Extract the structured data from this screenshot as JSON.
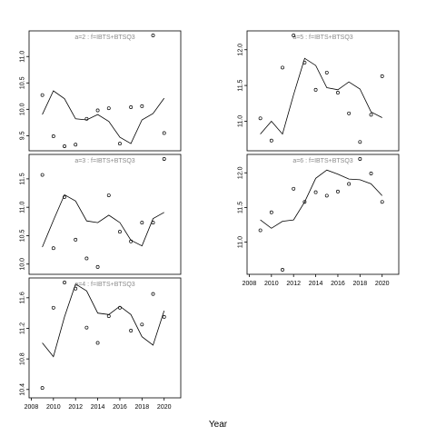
{
  "chart_data": {
    "type": "scatter",
    "xlabel": "Year",
    "panels": [
      {
        "label": "a=2 : f=IBTS+BTSQ3",
        "xlim": [
          2007.8,
          2021.5
        ],
        "ylim": [
          9.3,
          11.4
        ],
        "yticks": [
          9.5,
          10.0,
          10.5,
          11.0
        ],
        "xticks": [],
        "points": {
          "x": [
            2009,
            2010,
            2011,
            2012,
            2013,
            2014,
            2015,
            2016,
            2017,
            2018,
            2019,
            2020
          ],
          "y": [
            10.27,
            9.49,
            9.3,
            9.33,
            9.82,
            9.98,
            10.02,
            9.35,
            10.04,
            10.06,
            11.4,
            9.55
          ]
        },
        "line": {
          "x": [
            2009,
            2010,
            2011,
            2012,
            2013,
            2014,
            2015,
            2016,
            2017,
            2018,
            2019,
            2020
          ],
          "y": [
            9.9,
            10.35,
            10.2,
            9.82,
            9.8,
            9.9,
            9.77,
            9.47,
            9.35,
            9.8,
            9.92,
            10.21
          ]
        }
      },
      {
        "label": "a=3 : f=IBTS+BTSQ3",
        "xlim": [
          2007.8,
          2021.5
        ],
        "ylim": [
          9.9,
          11.85
        ],
        "yticks": [
          10.0,
          10.5,
          11.0,
          11.5
        ],
        "xticks": [],
        "points": {
          "x": [
            2009,
            2010,
            2011,
            2012,
            2013,
            2014,
            2015,
            2016,
            2017,
            2018,
            2019,
            2020
          ],
          "y": [
            11.57,
            10.28,
            11.18,
            10.43,
            10.1,
            9.95,
            11.21,
            10.57,
            10.4,
            10.73,
            10.73,
            11.85
          ]
        },
        "line": {
          "x": [
            2009,
            2010,
            2011,
            2012,
            2013,
            2014,
            2015,
            2016,
            2017,
            2018,
            2019,
            2020
          ],
          "y": [
            10.3,
            10.77,
            11.22,
            11.11,
            10.76,
            10.73,
            10.86,
            10.73,
            10.42,
            10.32,
            10.8,
            10.91
          ]
        }
      },
      {
        "label": "a=4 : f=IBTS+BTSQ3",
        "xlim": [
          2007.8,
          2021.5
        ],
        "ylim": [
          10.35,
          11.8
        ],
        "yticks": [
          10.4,
          10.8,
          11.2,
          11.6
        ],
        "xticks": [
          2008,
          2010,
          2012,
          2014,
          2016,
          2018,
          2020
        ],
        "points": {
          "x": [
            2009,
            2010,
            2011,
            2012,
            2013,
            2014,
            2015,
            2016,
            2017,
            2018,
            2019,
            2020
          ],
          "y": [
            10.42,
            11.47,
            11.8,
            11.72,
            11.21,
            11.01,
            11.36,
            11.47,
            11.17,
            11.25,
            11.65,
            11.35
          ]
        },
        "line": {
          "x": [
            2009,
            2010,
            2011,
            2012,
            2013,
            2014,
            2015,
            2016,
            2017,
            2018,
            2019,
            2020
          ],
          "y": [
            11.01,
            10.83,
            11.35,
            11.78,
            11.69,
            11.4,
            11.38,
            11.49,
            11.38,
            11.09,
            10.98,
            11.43
          ]
        }
      },
      {
        "label": "a=5 : f=IBTS+BTSQ3",
        "xlim": [
          2007.8,
          2021.5
        ],
        "ylim": [
          10.65,
          12.2
        ],
        "yticks": [
          11.0,
          11.5,
          12.0
        ],
        "xticks": [],
        "points": {
          "x": [
            2009,
            2010,
            2011,
            2012,
            2013,
            2014,
            2015,
            2016,
            2017,
            2018,
            2019,
            2020
          ],
          "y": [
            11.04,
            10.73,
            11.75,
            12.2,
            11.82,
            11.44,
            11.68,
            11.4,
            11.11,
            10.71,
            11.09,
            11.63
          ]
        },
        "line": {
          "x": [
            2009,
            2010,
            2011,
            2012,
            2013,
            2014,
            2015,
            2016,
            2017,
            2018,
            2019,
            2020
          ],
          "y": [
            10.82,
            11.0,
            10.82,
            11.37,
            11.88,
            11.78,
            11.47,
            11.44,
            11.55,
            11.45,
            11.13,
            11.05
          ]
        }
      },
      {
        "label": "a=6 : f=IBTS+BTSQ3",
        "xlim": [
          2007.8,
          2021.5
        ],
        "ylim": [
          10.6,
          12.2
        ],
        "yticks": [
          11.0,
          11.5,
          12.0
        ],
        "xticks": [
          2008,
          2010,
          2012,
          2014,
          2016,
          2018,
          2020
        ],
        "points": {
          "x": [
            2009,
            2010,
            2011,
            2012,
            2013,
            2014,
            2015,
            2016,
            2017,
            2018,
            2019,
            2020
          ],
          "y": [
            11.17,
            11.43,
            10.6,
            11.77,
            11.58,
            11.72,
            11.67,
            11.73,
            11.84,
            12.2,
            11.99,
            11.58
          ]
        },
        "line": {
          "x": [
            2009,
            2010,
            2011,
            2012,
            2013,
            2014,
            2015,
            2016,
            2017,
            2018,
            2019,
            2020
          ],
          "y": [
            11.32,
            11.2,
            11.3,
            11.32,
            11.58,
            11.92,
            12.04,
            11.98,
            11.91,
            11.9,
            11.84,
            11.67
          ]
        }
      }
    ]
  }
}
